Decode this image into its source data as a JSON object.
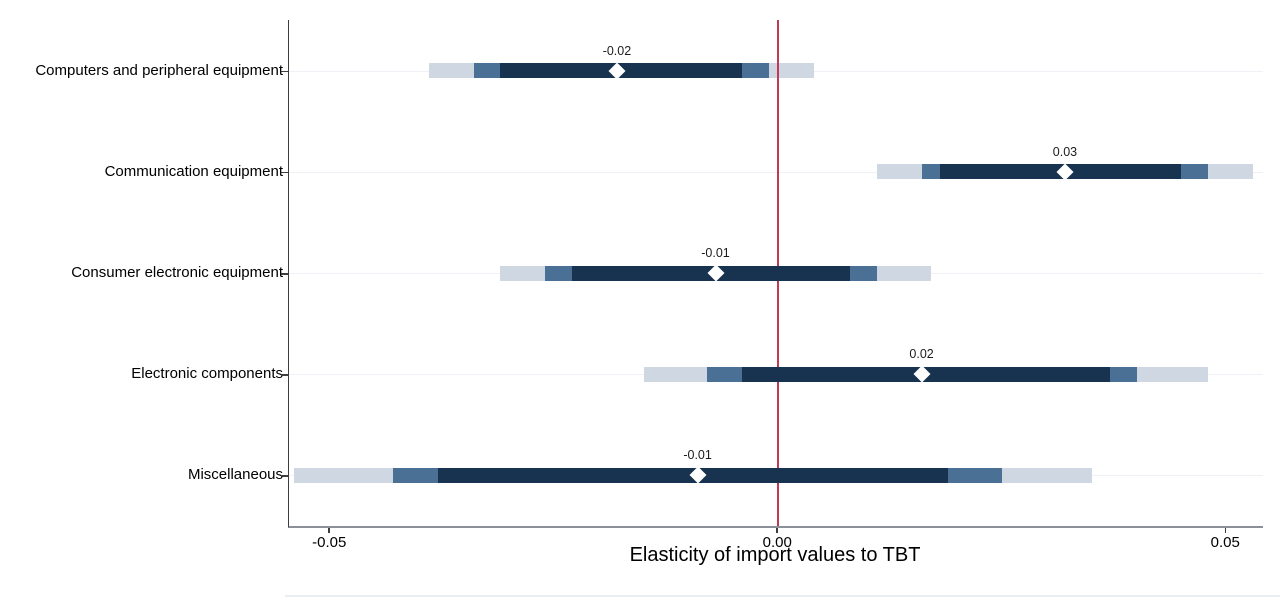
{
  "chart_data": {
    "type": "scatter",
    "subtype": "horizontal-interval-coefficient-plot",
    "title": "",
    "xlabel": "Elasticity of import values to TBT",
    "ylabel": "",
    "legend": "none",
    "grid": "faint-horizontal-per-category",
    "xlim": [
      -0.0546,
      0.0541
    ],
    "xticks": [
      {
        "value": -0.05,
        "label": "-0.05"
      },
      {
        "value": 0.0,
        "label": "0.00"
      },
      {
        "value": 0.05,
        "label": "0.05"
      }
    ],
    "zero_line": {
      "value": 0.0,
      "color": "#bf3a52"
    },
    "marker": "white-diamond-point-estimate",
    "bands_meaning": "nested confidence intervals: inner (dark), mid (medium blue), outer (light)",
    "colors": {
      "inner_band": "#18334f",
      "mid_band": "#4a7096",
      "outer_band": "#cfd7e2",
      "marker": "#ffffff",
      "grid": "#eef1f5",
      "y_axis": "#3d3d3d",
      "x_axis": "#8a8f98"
    },
    "rows": [
      {
        "category": "Computers and peripheral equipment",
        "estimate": -0.018,
        "estimate_label": "-0.02",
        "inner": [
          -0.031,
          -0.004
        ],
        "mid": [
          -0.034,
          -0.001
        ],
        "outer": [
          -0.039,
          0.004
        ]
      },
      {
        "category": "Communication equipment",
        "estimate": 0.032,
        "estimate_label": "0.03",
        "inner": [
          0.018,
          0.045
        ],
        "mid": [
          0.016,
          0.048
        ],
        "outer": [
          0.011,
          0.053
        ]
      },
      {
        "category": "Consumer electronic equipment",
        "estimate": -0.007,
        "estimate_label": "-0.01",
        "inner": [
          -0.023,
          0.008
        ],
        "mid": [
          -0.026,
          0.011
        ],
        "outer": [
          -0.031,
          0.017
        ]
      },
      {
        "category": "Electronic components",
        "estimate": 0.016,
        "estimate_label": "0.02",
        "inner": [
          -0.004,
          0.037
        ],
        "mid": [
          -0.008,
          0.04
        ],
        "outer": [
          -0.015,
          0.048
        ]
      },
      {
        "category": "Miscellaneous",
        "estimate": -0.009,
        "estimate_label": "-0.01",
        "inner": [
          -0.038,
          0.019
        ],
        "mid": [
          -0.043,
          0.025
        ],
        "outer": [
          -0.054,
          0.035
        ]
      }
    ]
  }
}
